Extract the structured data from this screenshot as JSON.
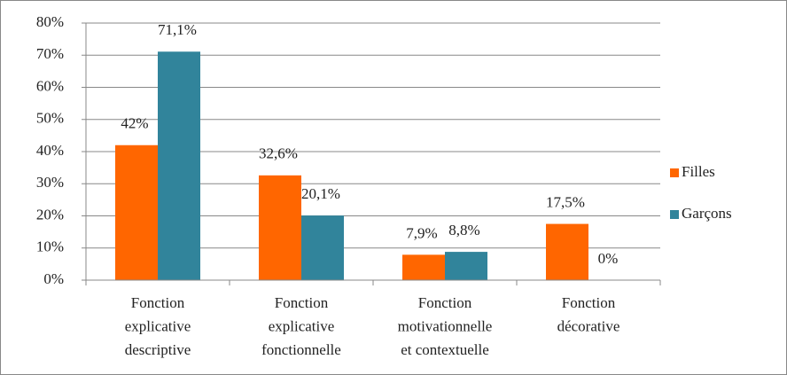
{
  "chart_data": {
    "type": "bar",
    "categories": [
      [
        "Fonction",
        "explicative",
        "descriptive"
      ],
      [
        "Fonction",
        "explicative",
        "fonctionnelle"
      ],
      [
        "Fonction",
        "motivationnelle",
        "et contextuelle"
      ],
      [
        "Fonction",
        "décorative"
      ]
    ],
    "series": [
      {
        "name": "Filles",
        "color": "#ff6600",
        "values": [
          42,
          32.6,
          7.9,
          17.5
        ],
        "value_labels": [
          "42%",
          "32,6%",
          "7,9%",
          "17,5%"
        ]
      },
      {
        "name": "Garçons",
        "color": "#31849b",
        "values": [
          71.1,
          20.1,
          8.8,
          0
        ],
        "value_labels": [
          "71,1%",
          "20,1%",
          "8,8%",
          "0%"
        ]
      }
    ],
    "ylim": [
      0,
      80
    ],
    "yticks": [
      {
        "value": 0,
        "label": "0%"
      },
      {
        "value": 10,
        "label": "10%"
      },
      {
        "value": 20,
        "label": "20%"
      },
      {
        "value": 30,
        "label": "30%"
      },
      {
        "value": 40,
        "label": "40%"
      },
      {
        "value": 50,
        "label": "50%"
      },
      {
        "value": 60,
        "label": "60%"
      },
      {
        "value": 70,
        "label": "70%"
      },
      {
        "value": 80,
        "label": "80%"
      }
    ],
    "grid": true,
    "legend": "right"
  }
}
